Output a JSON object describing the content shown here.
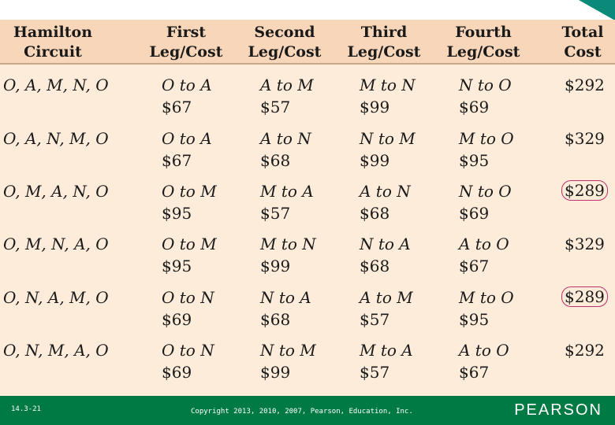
{
  "header": {
    "circuit": [
      "Hamilton",
      "Circuit"
    ],
    "first": [
      "First",
      "Leg/Cost"
    ],
    "second": [
      "Second",
      "Leg/Cost"
    ],
    "third": [
      "Third",
      "Leg/Cost"
    ],
    "fourth": [
      "Fourth",
      "Leg/Cost"
    ],
    "total": [
      "Total",
      "Cost"
    ]
  },
  "rows": [
    {
      "circuit": "O, A, M, N, O",
      "legs": [
        {
          "route": "O to A",
          "cost": "$67"
        },
        {
          "route": "A to M",
          "cost": "$57"
        },
        {
          "route": "M to N",
          "cost": "$99"
        },
        {
          "route": "N to O",
          "cost": "$69"
        }
      ],
      "total": "$292",
      "highlight": false
    },
    {
      "circuit": "O, A, N, M, O",
      "legs": [
        {
          "route": "O to A",
          "cost": "$67"
        },
        {
          "route": "A to N",
          "cost": "$68"
        },
        {
          "route": "N to M",
          "cost": "$99"
        },
        {
          "route": "M to O",
          "cost": "$95"
        }
      ],
      "total": "$329",
      "highlight": false
    },
    {
      "circuit": "O, M, A, N, O",
      "legs": [
        {
          "route": "O to M",
          "cost": "$95"
        },
        {
          "route": "M to A",
          "cost": "$57"
        },
        {
          "route": "A to N",
          "cost": "$68"
        },
        {
          "route": "N to O",
          "cost": "$69"
        }
      ],
      "total": "$289",
      "highlight": true
    },
    {
      "circuit": "O, M, N, A, O",
      "legs": [
        {
          "route": "O to M",
          "cost": "$95"
        },
        {
          "route": "M to N",
          "cost": "$99"
        },
        {
          "route": "N to A",
          "cost": "$68"
        },
        {
          "route": "A to O",
          "cost": "$67"
        }
      ],
      "total": "$329",
      "highlight": false
    },
    {
      "circuit": "O, N, A, M, O",
      "legs": [
        {
          "route": "O to N",
          "cost": "$69"
        },
        {
          "route": "N to A",
          "cost": "$68"
        },
        {
          "route": "A to M",
          "cost": "$57"
        },
        {
          "route": "M to O",
          "cost": "$95"
        }
      ],
      "total": "$289",
      "highlight": true
    },
    {
      "circuit": "O, N, M, A, O",
      "legs": [
        {
          "route": "O to N",
          "cost": "$69"
        },
        {
          "route": "N to M",
          "cost": "$99"
        },
        {
          "route": "M to A",
          "cost": "$57"
        },
        {
          "route": "A to O",
          "cost": "$67"
        }
      ],
      "total": "$292",
      "highlight": false
    }
  ],
  "footer": {
    "slide_number": "14.3-21",
    "copyright": "Copyright 2013, 2010, 2007, Pearson, Education, Inc.",
    "logo": "PEARSON"
  },
  "colors": {
    "header_bg": "#f8d6b9",
    "body_bg": "#fcecd9",
    "footer_bg": "#007a45",
    "highlight_circle": "#c0306e",
    "corner_accent": "#0b8a7a"
  }
}
